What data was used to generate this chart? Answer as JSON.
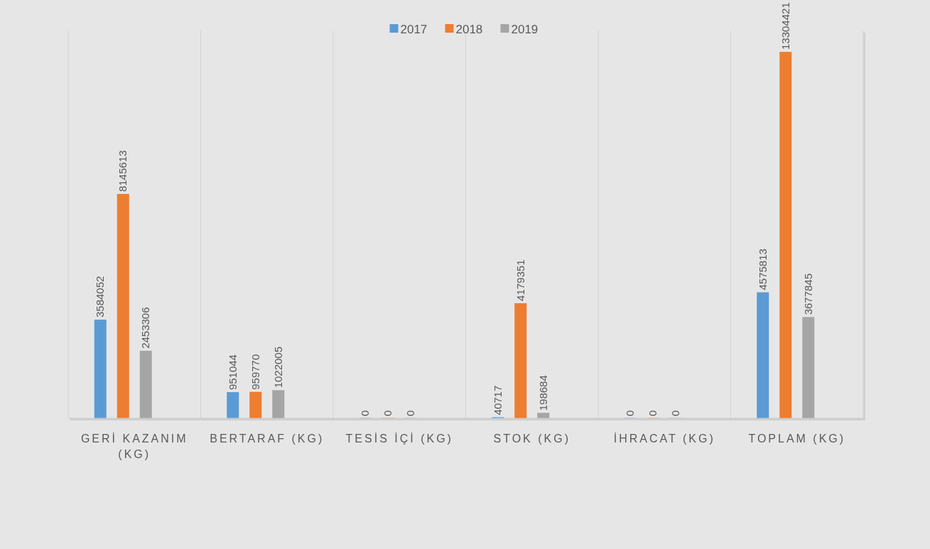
{
  "chart_data": {
    "type": "bar",
    "categories": [
      "GERİ KAZANIM (KG)",
      "BERTARAF (KG)",
      "TESİS İÇİ (KG)",
      "STOK (KG)",
      "İHRACAT (KG)",
      "TOPLAM (KG)"
    ],
    "series": [
      {
        "name": "2017",
        "color": "#5b9bd5",
        "values": [
          3584052,
          951044,
          0,
          40717,
          0,
          4575813
        ]
      },
      {
        "name": "2018",
        "color": "#ed7d31",
        "values": [
          8145613,
          959770,
          0,
          4179351,
          0,
          13304421
        ]
      },
      {
        "name": "2019",
        "color": "#a5a5a5",
        "values": [
          2453306,
          1022005,
          0,
          198684,
          0,
          3677845
        ]
      }
    ],
    "data_labels": true,
    "grid": "x",
    "legend": "top"
  }
}
